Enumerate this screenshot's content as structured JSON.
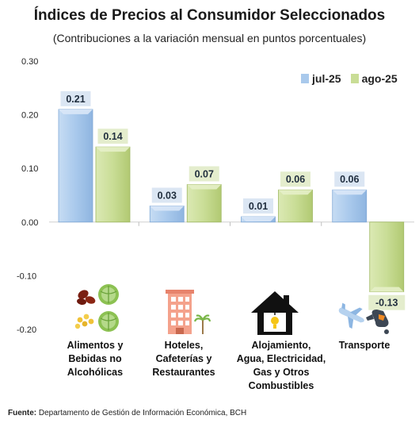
{
  "chart_data": {
    "type": "bar",
    "title": "Índices de Precios al Consumidor Seleccionados",
    "subtitle": "(Contribuciones a la variación mensual en puntos porcentuales)",
    "categories": [
      "Alimentos y Bebidas no Alcohólicas",
      "Hoteles, Cafeterías y Restaurantes",
      "Alojamiento, Agua, Electricidad, Gas y Otros Combustibles",
      "Transporte"
    ],
    "category_lines": [
      [
        "Alimentos y",
        "Bebidas no",
        "Alcohólicas"
      ],
      [
        "Hoteles,",
        "Cafeterías y",
        "Restaurantes"
      ],
      [
        "Alojamiento,",
        "Agua, Electricidad,",
        "Gas y Otros",
        "Combustibles"
      ],
      [
        "Transporte"
      ]
    ],
    "series": [
      {
        "name": "jul-25",
        "values": [
          0.21,
          0.03,
          0.01,
          0.06
        ],
        "labels": [
          "0.21",
          "0.03",
          "0.01",
          "0.06"
        ],
        "color": "#a9c9ec",
        "label_bg": "#dbe6f3"
      },
      {
        "name": "ago-25",
        "values": [
          0.14,
          0.07,
          0.06,
          -0.13
        ],
        "labels": [
          "0.14",
          "0.07",
          "0.06",
          "-0.13"
        ],
        "color": "#c9dd96",
        "label_bg": "#e4edcd"
      }
    ],
    "yticks": [
      "0.30",
      "0.20",
      "0.10",
      "0.00",
      "-0.10",
      "-0.20"
    ],
    "ylim": [
      -0.2,
      0.3
    ],
    "grid": false,
    "legend": "top-right"
  },
  "icons": [
    "food-icon",
    "hotel-icon",
    "house-icon",
    "transport-icon"
  ],
  "source": {
    "label": "Fuente:",
    "text": " Departamento de Gestión de Información Económica, BCH"
  }
}
